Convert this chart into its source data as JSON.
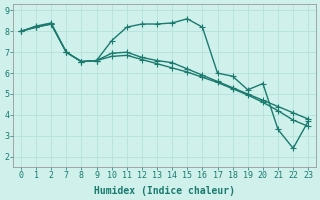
{
  "title": "",
  "xlabel": "Humidex (Indice chaleur)",
  "ylabel": "",
  "bg_color": "#cff0eb",
  "line_color": "#1a7a6e",
  "grid_color": "#b8e4de",
  "ylim": [
    1.5,
    9.3
  ],
  "yticks": [
    2,
    3,
    4,
    5,
    6,
    7,
    8,
    9
  ],
  "xtick_labels": [
    "0",
    "1",
    "2",
    "7",
    "8",
    "9",
    "10",
    "11",
    "12",
    "13",
    "14",
    "15",
    "16",
    "17",
    "18",
    "19",
    "20",
    "21",
    "22",
    "23"
  ],
  "line1_y": [
    8.0,
    8.25,
    8.4,
    7.0,
    6.55,
    6.6,
    7.55,
    8.2,
    8.35,
    8.35,
    8.4,
    8.6,
    8.2,
    6.0,
    5.85,
    5.2,
    5.5,
    3.3,
    2.4,
    3.7
  ],
  "line2_y": [
    8.0,
    8.2,
    8.35,
    7.0,
    6.55,
    6.6,
    6.95,
    7.0,
    6.75,
    6.6,
    6.5,
    6.2,
    5.9,
    5.6,
    5.3,
    5.0,
    4.7,
    4.4,
    4.1,
    3.8
  ],
  "line3_y": [
    8.0,
    8.2,
    8.35,
    7.0,
    6.55,
    6.6,
    6.8,
    6.85,
    6.65,
    6.45,
    6.25,
    6.05,
    5.8,
    5.55,
    5.25,
    4.95,
    4.6,
    4.2,
    3.75,
    3.45
  ],
  "markersize": 2.5,
  "linewidth": 1.0,
  "xlabel_fontsize": 7,
  "tick_fontsize": 6
}
